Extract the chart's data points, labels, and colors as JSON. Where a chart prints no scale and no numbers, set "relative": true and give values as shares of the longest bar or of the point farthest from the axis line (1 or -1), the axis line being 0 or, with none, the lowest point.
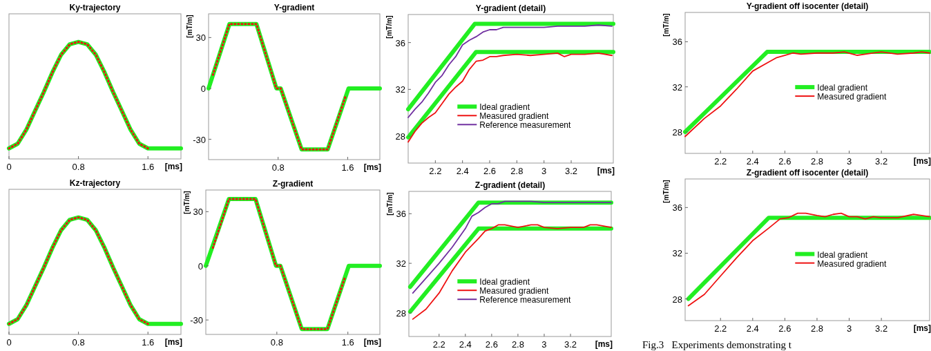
{
  "chart_data": [
    {
      "type": "line",
      "title": "Ky-trajectory",
      "xlabel": "[ms]",
      "relative": true,
      "xlim": [
        0,
        1.98
      ],
      "xticks": [
        0,
        0.8,
        1.6
      ],
      "tick_labels": "x",
      "series": [
        {
          "color": "#22ee22",
          "x": [
            0,
            0.1,
            0.2,
            0.3,
            0.4,
            0.5,
            0.6,
            0.7,
            0.8,
            0.9,
            1.0,
            1.1,
            1.2,
            1.3,
            1.4,
            1.5,
            1.6,
            1.98
          ],
          "values": [
            0.09,
            0.13,
            0.25,
            0.41,
            0.57,
            0.74,
            0.89,
            0.98,
            1,
            0.98,
            0.89,
            0.74,
            0.57,
            0.41,
            0.25,
            0.13,
            0.09,
            0.09
          ]
        },
        {
          "color": "#ee1111",
          "line_style": "dotted",
          "x": [
            0,
            0.1,
            0.2,
            0.3,
            0.4,
            0.5,
            0.6,
            0.7,
            0.8,
            0.9,
            1.0,
            1.1,
            1.2,
            1.3,
            1.4,
            1.5,
            1.6
          ],
          "values": [
            0.09,
            0.13,
            0.25,
            0.41,
            0.57,
            0.74,
            0.89,
            0.98,
            1,
            0.98,
            0.89,
            0.74,
            0.57,
            0.41,
            0.25,
            0.13,
            0.09
          ]
        }
      ]
    },
    {
      "type": "line",
      "title": "Y-gradient",
      "xlabel": "[ms]",
      "ylabel": "[mT/m]",
      "xlim": [
        0,
        1.97
      ],
      "xticks": [
        0.8,
        1.6
      ],
      "ylim": [
        -42,
        44
      ],
      "yticks": [
        -30,
        0,
        30
      ],
      "series": [
        {
          "color": "#22ee22",
          "x": [
            0,
            0.24,
            0.55,
            0.78,
            0.83,
            1.07,
            1.37,
            1.61,
            1.97
          ],
          "values": [
            0,
            38,
            38,
            0,
            0,
            -36,
            -36,
            0,
            0
          ]
        },
        {
          "color": "#ee1111",
          "line_style": "dotted",
          "x": [
            0.05,
            0.24,
            0.55,
            0.78,
            0.83,
            1.07,
            1.37,
            1.58
          ],
          "values": [
            8,
            38,
            38,
            0,
            0,
            -36,
            -36,
            -4
          ]
        }
      ]
    },
    {
      "type": "line",
      "title": "Y-gradient (detail)",
      "xlabel": "[ms]",
      "ylabel": "[mT/m]",
      "xlim": [
        2.0,
        3.51
      ],
      "xticks": [
        2.2,
        2.4,
        2.6,
        2.8,
        3,
        3.2
      ],
      "ylim": [
        25.7,
        38.4
      ],
      "yticks": [
        28,
        32,
        36
      ],
      "legend": "center",
      "series": [
        {
          "name": "Ideal gradient",
          "color": "#22ee22",
          "x": [
            2.0,
            2.5,
            3.51
          ],
          "values": [
            27.9,
            35.2,
            35.2
          ]
        },
        {
          "name": "Measured gradient",
          "color": "#ee1111",
          "x": [
            2.0,
            2.05,
            2.1,
            2.15,
            2.2,
            2.25,
            2.3,
            2.35,
            2.4,
            2.45,
            2.5,
            2.55,
            2.6,
            2.65,
            2.7,
            2.8,
            2.9,
            3.0,
            3.1,
            3.15,
            3.2,
            3.3,
            3.4,
            3.5
          ],
          "values": [
            27.5,
            28.4,
            29.1,
            29.6,
            30.0,
            30.8,
            31.6,
            32.2,
            32.7,
            33.7,
            34.4,
            34.5,
            34.8,
            34.8,
            34.9,
            35.0,
            34.9,
            35.0,
            35.1,
            34.8,
            35.0,
            35.0,
            35.1,
            34.9
          ]
        },
        {
          "name": "Reference measurement",
          "color": "#7030a0",
          "x": [
            2.0,
            2.05,
            2.1,
            2.15,
            2.2,
            2.25,
            2.3,
            2.35,
            2.4,
            2.45,
            2.5,
            2.55,
            2.6,
            2.65,
            2.7,
            2.8,
            2.9,
            3.0,
            3.1,
            3.2,
            3.3,
            3.4,
            3.5
          ],
          "values": [
            29.6,
            30.3,
            30.9,
            31.7,
            32.6,
            33.2,
            34.1,
            34.8,
            35.8,
            36.2,
            36.5,
            36.9,
            37.1,
            37.1,
            37.3,
            37.3,
            37.3,
            37.3,
            37.4,
            37.4,
            37.4,
            37.5,
            37.4
          ]
        },
        {
          "color": "#22ee22",
          "x": [
            2.0,
            2.49,
            3.51
          ],
          "values": [
            30.3,
            37.6,
            37.6
          ]
        }
      ]
    },
    {
      "type": "line",
      "title": "Y-gradient  off  isocenter (detail)",
      "xlabel": "[ms]",
      "ylabel": "[mT/m]",
      "xlim": [
        1.98,
        3.5
      ],
      "xticks": [
        2.2,
        2.4,
        2.6,
        2.8,
        3,
        3.2
      ],
      "ylim": [
        26.1,
        38.6
      ],
      "yticks": [
        28,
        32,
        36
      ],
      "legend": "center right",
      "series": [
        {
          "name": "Ideal gradient",
          "color": "#22ee22",
          "x": [
            1.98,
            2.49,
            3.5
          ],
          "values": [
            28.0,
            35.1,
            35.1
          ]
        },
        {
          "name": "Measured gradient",
          "color": "#ee1111",
          "x": [
            1.98,
            2.1,
            2.2,
            2.3,
            2.4,
            2.5,
            2.55,
            2.6,
            2.65,
            2.7,
            2.8,
            2.9,
            2.97,
            3.05,
            3.1,
            3.2,
            3.3,
            3.4,
            3.45,
            3.5
          ],
          "values": [
            27.6,
            29.2,
            30.3,
            31.8,
            33.4,
            34.2,
            34.6,
            34.8,
            35.0,
            34.9,
            35.0,
            35.0,
            35.1,
            34.8,
            34.9,
            35.1,
            34.9,
            35.0,
            35.1,
            35.0
          ]
        }
      ]
    },
    {
      "type": "line",
      "title": "Kz-trajectory",
      "xlabel": "[ms]",
      "relative": true,
      "xlim": [
        0,
        1.98
      ],
      "xticks": [
        0,
        0.8,
        1.6
      ],
      "tick_labels": "x",
      "series": [
        {
          "color": "#22ee22",
          "x": [
            0,
            0.1,
            0.2,
            0.3,
            0.4,
            0.5,
            0.6,
            0.7,
            0.8,
            0.9,
            1.0,
            1.1,
            1.2,
            1.3,
            1.4,
            1.5,
            1.6,
            1.98
          ],
          "values": [
            0.09,
            0.13,
            0.25,
            0.41,
            0.57,
            0.74,
            0.89,
            0.98,
            1,
            0.98,
            0.89,
            0.74,
            0.57,
            0.41,
            0.25,
            0.13,
            0.09,
            0.09
          ]
        },
        {
          "color": "#ee1111",
          "line_style": "dotted",
          "x": [
            0,
            0.1,
            0.2,
            0.3,
            0.4,
            0.5,
            0.6,
            0.7,
            0.8,
            0.9,
            1.0,
            1.1,
            1.2,
            1.3,
            1.4,
            1.5,
            1.6
          ],
          "values": [
            0.09,
            0.13,
            0.25,
            0.41,
            0.57,
            0.74,
            0.89,
            0.98,
            1,
            0.98,
            0.89,
            0.74,
            0.57,
            0.41,
            0.25,
            0.13,
            0.09
          ]
        }
      ]
    },
    {
      "type": "line",
      "title": "Z-gradient",
      "xlabel": "[ms]",
      "ylabel": "[mT/m]",
      "xlim": [
        0,
        1.96
      ],
      "xticks": [
        0.8,
        1.6
      ],
      "ylim": [
        -38,
        42
      ],
      "yticks": [
        -30,
        0,
        30
      ],
      "series": [
        {
          "color": "#22ee22",
          "x": [
            0,
            0.26,
            0.56,
            0.79,
            0.84,
            1.08,
            1.37,
            1.61,
            1.96
          ],
          "values": [
            0,
            37,
            37,
            0,
            0,
            -35,
            -35,
            0,
            0
          ]
        },
        {
          "color": "#ee1111",
          "line_style": "dotted",
          "x": [
            0.08,
            0.26,
            0.56,
            0.79,
            0.84,
            1.08,
            1.37,
            1.57
          ],
          "values": [
            10,
            37,
            37,
            0,
            0,
            -35,
            -35,
            -6
          ]
        }
      ]
    },
    {
      "type": "line",
      "title": "Z-gradient (detail)",
      "xlabel": "[ms]",
      "ylabel": "[mT/m]",
      "xlim": [
        1.97,
        3.51
      ],
      "xticks": [
        2.2,
        2.4,
        2.6,
        2.8,
        3,
        3.2
      ],
      "ylim": [
        26.1,
        37.8
      ],
      "yticks": [
        28,
        32,
        36
      ],
      "legend": "center",
      "series": [
        {
          "name": "Ideal gradient",
          "color": "#22ee22",
          "x": [
            1.98,
            2.5,
            3.51
          ],
          "values": [
            28.1,
            34.8,
            34.8
          ]
        },
        {
          "name": "Measured gradient",
          "color": "#ee1111",
          "x": [
            2.0,
            2.1,
            2.2,
            2.3,
            2.4,
            2.5,
            2.55,
            2.6,
            2.65,
            2.7,
            2.8,
            2.9,
            2.95,
            3.0,
            3.1,
            3.2,
            3.3,
            3.35,
            3.4,
            3.51
          ],
          "values": [
            27.5,
            28.3,
            29.6,
            31.4,
            32.9,
            34.0,
            34.6,
            34.8,
            35.1,
            35.1,
            34.9,
            35.1,
            35.1,
            34.9,
            34.8,
            34.9,
            34.9,
            35.1,
            35.1,
            34.9
          ]
        },
        {
          "name": "Reference measurement",
          "color": "#7030a0",
          "x": [
            2.0,
            2.1,
            2.2,
            2.3,
            2.4,
            2.45,
            2.5,
            2.55,
            2.6,
            2.65,
            2.7,
            2.8,
            2.9,
            3.0,
            3.2,
            3.4,
            3.51
          ],
          "values": [
            29.6,
            30.8,
            32.0,
            33.3,
            34.8,
            35.8,
            36.1,
            36.5,
            36.8,
            36.8,
            37.0,
            37.0,
            37.0,
            36.9,
            36.9,
            36.9,
            36.9
          ]
        },
        {
          "color": "#22ee22",
          "x": [
            1.98,
            2.5,
            3.51
          ],
          "values": [
            30.1,
            36.9,
            36.9
          ]
        }
      ]
    },
    {
      "type": "line",
      "title": "Z-gradient  off  isocenter (detail)",
      "xlabel": "[ms]",
      "ylabel": "[mT/m]",
      "xlim": [
        1.98,
        3.5
      ],
      "xticks": [
        2.2,
        2.4,
        2.6,
        2.8,
        3,
        3.2
      ],
      "ylim": [
        26.1,
        38.5
      ],
      "yticks": [
        28,
        32,
        36
      ],
      "legend": "center right",
      "annotations": [
        "Fig.3   Experiments demonstrating t"
      ],
      "series": [
        {
          "name": "Ideal gradient",
          "color": "#22ee22",
          "x": [
            2.0,
            2.5,
            3.5
          ],
          "values": [
            28.0,
            35.1,
            35.1
          ]
        },
        {
          "name": "Measured gradient",
          "color": "#ee1111",
          "x": [
            2.0,
            2.1,
            2.2,
            2.3,
            2.4,
            2.5,
            2.57,
            2.62,
            2.68,
            2.73,
            2.8,
            2.85,
            2.9,
            2.95,
            3.0,
            3.05,
            3.1,
            3.15,
            3.2,
            3.3,
            3.4,
            3.45,
            3.5
          ],
          "values": [
            27.4,
            28.4,
            30.0,
            31.6,
            33.1,
            34.2,
            35.0,
            35.1,
            35.5,
            35.5,
            35.3,
            35.2,
            35.4,
            35.5,
            35.2,
            35.2,
            35.0,
            35.2,
            35.1,
            35.1,
            35.4,
            35.3,
            35.2
          ]
        }
      ]
    }
  ]
}
